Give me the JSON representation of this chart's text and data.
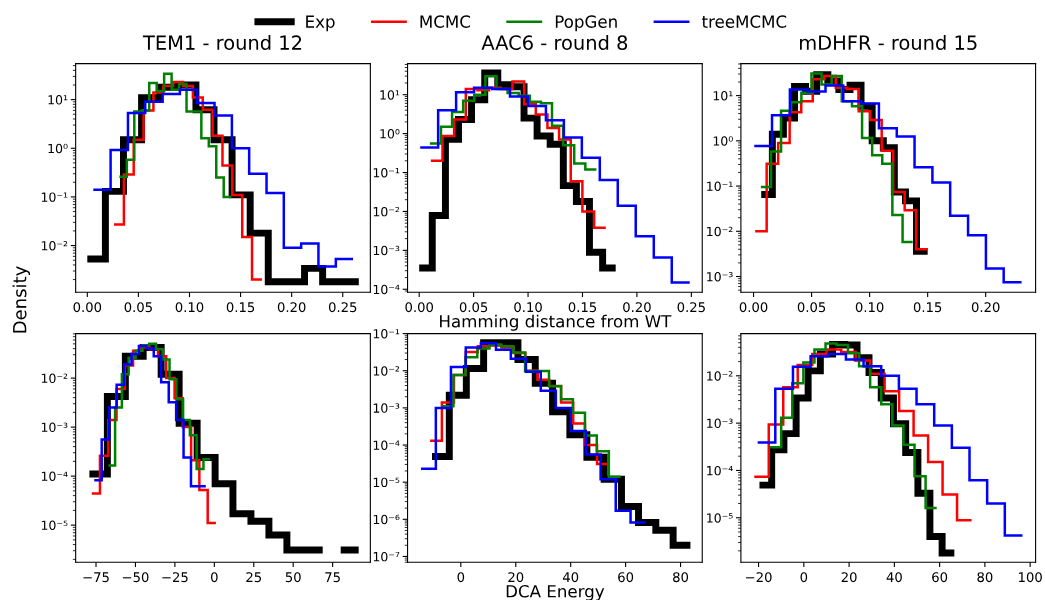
{
  "chart_data": [
    {
      "type": "step",
      "title": "TEM1 - round 12",
      "ylabel": "Density",
      "legend": "top",
      "log": true,
      "xlim": [
        -0.0114,
        0.277
      ],
      "ylim": [
        0.0011,
        55
      ],
      "xticks": [
        {
          "value": 0,
          "label": "0.00"
        },
        {
          "value": 0.05,
          "label": "0.05"
        },
        {
          "value": 0.1,
          "label": "0.10"
        },
        {
          "value": 0.15,
          "label": "0.15"
        },
        {
          "value": 0.2,
          "label": "0.20"
        },
        {
          "value": 0.25,
          "label": "0.25"
        }
      ],
      "yticks": [
        {
          "value": 0.01,
          "label": "10⁻²"
        },
        {
          "value": 0.1,
          "label": "10⁻¹"
        },
        {
          "value": 1,
          "label": "10⁰"
        },
        {
          "value": 10,
          "label": "10¹"
        }
      ],
      "series": [
        {
          "name": "Exp",
          "color": "#000000",
          "x": [
            0,
            0.0177,
            0.0354,
            0.0531,
            0.0709,
            0.0886,
            0.1063,
            0.124,
            0.1417,
            0.1594,
            0.1771,
            0.1948,
            0.2126,
            0.2303,
            0.248,
            0.2657
          ],
          "values": [
            0.0053,
            0.13,
            1.5,
            11,
            18,
            20,
            6.2,
            1.5,
            0.11,
            0.018,
            0.0018,
            0.0018,
            0.0034,
            0.0018,
            0.0018,
            0.0018
          ]
        },
        {
          "name": "MCMC",
          "color": "#ff0000",
          "x": [
            0.0261,
            0.0358,
            0.0454,
            0.0551,
            0.0647,
            0.0744,
            0.084,
            0.0937,
            0.1033,
            0.113,
            0.1226,
            0.1323,
            0.1419,
            0.1516,
            0.1612,
            0.1709
          ],
          "values": [
            0.027,
            0.29,
            1.5,
            6,
            14,
            19,
            23,
            19,
            11,
            6.2,
            1.8,
            0.44,
            0.11,
            0.015,
            0.002,
            0.002
          ]
        },
        {
          "name": "PopGen",
          "color": "#008000",
          "x": [
            0.0314,
            0.0387,
            0.046,
            0.0533,
            0.0606,
            0.0679,
            0.0752,
            0.0825,
            0.0898,
            0.0971,
            0.1044,
            0.1116,
            0.1189,
            0.1262,
            0.1335,
            0.1408
          ],
          "values": [
            0.26,
            0.58,
            5.7,
            6,
            22,
            15,
            34,
            16,
            21,
            5.7,
            5.7,
            1.6,
            1.1,
            0.25,
            0.1,
            0.1
          ]
        },
        {
          "name": "treeMCMC",
          "color": "#0000ff",
          "x": [
            0.0059,
            0.0228,
            0.0398,
            0.0567,
            0.0737,
            0.0906,
            0.1076,
            0.1245,
            0.1415,
            0.1584,
            0.1754,
            0.1923,
            0.2093,
            0.2262,
            0.2432,
            0.2601
          ],
          "values": [
            0.14,
            0.92,
            5.3,
            9,
            13,
            16,
            8.5,
            4.7,
            1.0,
            0.3,
            0.12,
            0.009,
            0.011,
            0.0037,
            0.0053,
            0.0053
          ]
        }
      ]
    },
    {
      "type": "step",
      "title": "AAC6 - round 8",
      "xlabel": "Hamming distance from WT",
      "log": true,
      "xlim": [
        -0.0107,
        0.26
      ],
      "ylim": [
        8.4e-05,
        63
      ],
      "xticks": [
        {
          "value": 0,
          "label": "0.00"
        },
        {
          "value": 0.05,
          "label": "0.05"
        },
        {
          "value": 0.1,
          "label": "0.10"
        },
        {
          "value": 0.15,
          "label": "0.15"
        },
        {
          "value": 0.2,
          "label": "0.20"
        },
        {
          "value": 0.25,
          "label": "0.25"
        }
      ],
      "yticks": [
        {
          "value": 0.0001,
          "label": "10⁻⁴"
        },
        {
          "value": 0.001,
          "label": "10⁻³"
        },
        {
          "value": 0.01,
          "label": "10⁻²"
        },
        {
          "value": 0.1,
          "label": "10⁻¹"
        },
        {
          "value": 1,
          "label": "10⁰"
        },
        {
          "value": 10,
          "label": "10¹"
        }
      ],
      "series": [
        {
          "color": "#000000",
          "x": [
            0,
            0.012,
            0.0241,
            0.0361,
            0.0481,
            0.0602,
            0.0722,
            0.0842,
            0.0963,
            0.1083,
            0.1203,
            0.1324,
            0.1444,
            0.1564,
            0.1685,
            0.1805
          ],
          "values": [
            0.00035,
            0.0079,
            0.71,
            2.3,
            7.4,
            36,
            18,
            16,
            2.5,
            0.87,
            0.53,
            0.046,
            0.018,
            0.00089,
            0.00035,
            0.00035
          ]
        },
        {
          "color": "#ff0000",
          "x": [
            0.0107,
            0.0214,
            0.0321,
            0.0428,
            0.0535,
            0.0642,
            0.0749,
            0.0857,
            0.0964,
            0.1071,
            0.1178,
            0.1285,
            0.1392,
            0.1499,
            0.1607,
            0.1714
          ],
          "values": [
            0.2,
            0.87,
            2.3,
            14,
            13,
            15,
            14,
            22,
            5.7,
            3.1,
            1.4,
            0.71,
            0.06,
            0.01,
            0.0038,
            0.0038
          ]
        },
        {
          "color": "#008000",
          "x": [
            0.0098,
            0.02,
            0.0302,
            0.0404,
            0.0506,
            0.0608,
            0.071,
            0.0812,
            0.0914,
            0.1016,
            0.1118,
            0.122,
            0.1322,
            0.1424,
            0.1526,
            0.1628
          ],
          "values": [
            0.56,
            1.5,
            3.6,
            7,
            10,
            30,
            14,
            11,
            9.4,
            6.6,
            6,
            1.6,
            0.5,
            0.17,
            0.12,
            0.12
          ]
        },
        {
          "color": "#0000ff",
          "x": [
            0.0009,
            0.0174,
            0.0339,
            0.0504,
            0.0669,
            0.0834,
            0.0999,
            0.1164,
            0.1329,
            0.1494,
            0.1659,
            0.1824,
            0.1989,
            0.2155,
            0.232,
            0.2485
          ],
          "values": [
            0.44,
            4,
            11.5,
            15,
            14,
            9,
            5.1,
            2.2,
            0.8,
            0.24,
            0.064,
            0.014,
            0.0023,
            0.00065,
            0.00015,
            0.00015
          ]
        }
      ]
    },
    {
      "type": "step",
      "title": "mDHFR - round 15",
      "log": true,
      "xlim": [
        -0.0109,
        0.243
      ],
      "ylim": [
        0.00045,
        51
      ],
      "xticks": [
        {
          "value": 0,
          "label": "0.00"
        },
        {
          "value": 0.05,
          "label": "0.05"
        },
        {
          "value": 0.1,
          "label": "0.10"
        },
        {
          "value": 0.15,
          "label": "0.15"
        },
        {
          "value": 0.2,
          "label": "0.20"
        }
      ],
      "yticks": [
        {
          "value": 0.001,
          "label": "10⁻³"
        },
        {
          "value": 0.01,
          "label": "10⁻²"
        },
        {
          "value": 0.1,
          "label": "10⁻¹"
        },
        {
          "value": 1,
          "label": "10⁰"
        },
        {
          "value": 10,
          "label": "10¹"
        }
      ],
      "series": [
        {
          "color": "#000000",
          "x": [
            0.0066,
            0.0162,
            0.0257,
            0.0353,
            0.0448,
            0.0544,
            0.064,
            0.0735,
            0.0831,
            0.0926,
            0.1022,
            0.1118,
            0.1213,
            0.1309,
            0.1404,
            0.15
          ],
          "values": [
            0.065,
            1.4,
            3.2,
            16,
            12.5,
            29,
            21,
            13.6,
            17,
            5.8,
            1.0,
            0.7,
            0.074,
            0.047,
            0.0036,
            0.0036
          ]
        },
        {
          "color": "#ff0000",
          "x": [
            0.0014,
            0.0113,
            0.0212,
            0.0311,
            0.0411,
            0.051,
            0.0609,
            0.0708,
            0.0807,
            0.0906,
            0.1005,
            0.1104,
            0.1203,
            0.1302,
            0.1401,
            0.15
          ],
          "values": [
            0.01,
            0.31,
            0.89,
            4.3,
            7.5,
            23,
            27,
            15,
            14,
            4.5,
            2.9,
            0.6,
            0.074,
            0.029,
            0.004,
            0.004
          ]
        },
        {
          "color": "#008000",
          "x": [
            0.0063,
            0.015,
            0.0237,
            0.0324,
            0.0412,
            0.0499,
            0.0586,
            0.0673,
            0.076,
            0.0848,
            0.0935,
            0.1022,
            0.1109,
            0.1196,
            0.1284,
            0.1371
          ],
          "values": [
            0.095,
            0.58,
            4.6,
            7.1,
            11.5,
            31,
            17.5,
            27,
            7.5,
            5.8,
            1.15,
            0.48,
            0.31,
            0.023,
            0.0058,
            0.0058
          ]
        },
        {
          "color": "#0000ff",
          "x": [
            0.0006,
            0.0159,
            0.0313,
            0.0466,
            0.062,
            0.0773,
            0.0927,
            0.108,
            0.1234,
            0.1387,
            0.1541,
            0.1694,
            0.1848,
            0.2002,
            0.2155,
            0.2309
          ],
          "values": [
            0.77,
            3.7,
            13.6,
            12.3,
            16.7,
            7.5,
            6.7,
            1.9,
            1.25,
            0.26,
            0.12,
            0.022,
            0.0082,
            0.0015,
            0.00075,
            0.00075
          ]
        }
      ]
    },
    {
      "type": "step",
      "log": true,
      "xlim": [
        -87.9,
        98.9
      ],
      "ylim": [
        1.75e-06,
        0.081
      ],
      "xticks": [
        {
          "value": -75,
          "label": "−75"
        },
        {
          "value": -50,
          "label": "−50"
        },
        {
          "value": -25,
          "label": "−25"
        },
        0,
        25,
        50,
        75
      ],
      "yticks": [
        {
          "value": 1e-05,
          "label": "10⁻⁵"
        },
        {
          "value": 0.0001,
          "label": "10⁻⁴"
        },
        {
          "value": 0.001,
          "label": "10⁻³"
        },
        {
          "value": 0.01,
          "label": "10⁻²"
        }
      ],
      "series": [
        {
          "color": "#000000",
          "x": [
            -79.2,
            -67.8,
            -56.4,
            -45.1,
            -33.7,
            -22.3,
            -10.9,
            0.5,
            11.8,
            23.2,
            34.6,
            46.0,
            57.4,
            68.7,
            80.1,
            91.5
          ],
          "values": [
            0.00011,
            0.0042,
            0.028,
            0.042,
            0.012,
            0.0012,
            0.00024,
            7e-05,
            1.7e-05,
            1.2e-05,
            6.3e-06,
            3.1e-06,
            3.1e-06,
            null,
            3.1e-06,
            3.1e-06
          ]
        },
        {
          "color": "#ff0000",
          "x": [
            -77.7,
            -72.5,
            -67.2,
            -62.0,
            -56.7,
            -51.5,
            -46.2,
            -41.0,
            -35.7,
            -30.5,
            -25.2,
            -20.0,
            -14.7,
            -9.5,
            -4.2,
            1.0
          ],
          "values": [
            4.4e-05,
            0.00026,
            0.0014,
            0.006,
            0.018,
            0.036,
            0.042,
            0.039,
            0.028,
            0.01,
            0.0039,
            0.001,
            0.00021,
            5.2e-05,
            1.1e-05,
            1.1e-05
          ]
        },
        {
          "color": "#008000",
          "x": [
            -67.2,
            -62.9,
            -58.6,
            -54.3,
            -49.9,
            -45.6,
            -41.3,
            -37.0,
            -32.7,
            -28.4,
            -24.1,
            -19.8,
            -15.5,
            -11.2,
            -6.9,
            -2.6
          ],
          "values": [
            0.000165,
            0.0025,
            0.012,
            0.026,
            0.036,
            0.047,
            0.05,
            0.039,
            0.024,
            0.0095,
            0.0037,
            0.0014,
            0.00068,
            0.00014,
            0.00022,
            0.00022
          ]
        },
        {
          "color": "#0000ff",
          "x": [
            -76.1,
            -71.4,
            -66.7,
            -61.9,
            -57.2,
            -52.5,
            -47.8,
            -43.1,
            -38.4,
            -33.7,
            -28.9,
            -24.2,
            -19.5,
            -14.8,
            -10.1,
            -5.4
          ],
          "values": [
            8.2e-05,
            0.00056,
            0.0025,
            0.0073,
            0.019,
            0.031,
            0.045,
            0.04,
            0.028,
            0.0082,
            0.0032,
            0.0014,
            0.00024,
            6.2e-05,
            6.2e-05,
            6.2e-05
          ]
        }
      ]
    },
    {
      "type": "step",
      "xlabel": "DCA Energy",
      "log": true,
      "xlim": [
        -19.4,
        87.9
      ],
      "ylim": [
        7e-08,
        0.1
      ],
      "xticks": [
        0,
        20,
        40,
        60,
        80
      ],
      "yticks": [
        {
          "value": 1e-07,
          "label": "10⁻⁷"
        },
        {
          "value": 1e-06,
          "label": "10⁻⁶"
        },
        {
          "value": 1e-05,
          "label": "10⁻⁵"
        },
        {
          "value": 0.0001,
          "label": "10⁻⁴"
        },
        {
          "value": 0.001,
          "label": "10⁻³"
        },
        {
          "value": 0.01,
          "label": "10⁻²"
        },
        {
          "value": 0.1,
          "label": "10⁻¹"
        }
      ],
      "series": [
        {
          "color": "#000000",
          "x": [
            -10.5,
            -4.2,
            2.0,
            8.3,
            14.6,
            20.8,
            27.1,
            33.4,
            39.7,
            45.9,
            52.2,
            58.5,
            64.7,
            71.0,
            77.3,
            83.6
          ],
          "values": [
            4.9e-05,
            0.0022,
            0.0115,
            0.057,
            0.057,
            0.02,
            0.0046,
            0.00078,
            0.00019,
            4.7e-05,
            1.2e-05,
            2.2e-06,
            8.2e-07,
            5.1e-07,
            2e-07,
            2e-07
          ]
        },
        {
          "color": "#ff0000",
          "x": [
            -11.2,
            -6.9,
            -2.5,
            1.8,
            6.2,
            10.5,
            14.8,
            19.2,
            23.5,
            27.9,
            32.2,
            36.5,
            40.9,
            45.2,
            49.6,
            53.9
          ],
          "values": [
            0.00013,
            0.0014,
            0.0077,
            0.032,
            0.046,
            0.048,
            0.042,
            0.03,
            0.01,
            0.0057,
            0.0039,
            0.0014,
            0.00038,
            0.0001,
            3.1e-05,
            3.1e-05
          ]
        },
        {
          "color": "#008000",
          "x": [
            -7.0,
            -2.7,
            1.7,
            6.0,
            10.4,
            14.7,
            19.1,
            23.4,
            27.8,
            32.1,
            36.5,
            40.8,
            45.2,
            49.5,
            53.9,
            58.2
          ],
          "values": [
            0.0011,
            0.0077,
            0.023,
            0.04,
            0.051,
            0.046,
            0.031,
            0.0098,
            0.0098,
            0.0038,
            0.0017,
            0.00074,
            0.00018,
            6.8e-05,
            1.4e-05,
            1.4e-05
          ]
        },
        {
          "color": "#0000ff",
          "x": [
            -14.5,
            -9.1,
            -3.6,
            1.8,
            7.3,
            12.8,
            18.2,
            23.7,
            29.1,
            34.6,
            40.0,
            45.5,
            50.9,
            56.4,
            61.8,
            67.3
          ],
          "values": [
            2.3e-05,
            0.001,
            0.0127,
            0.042,
            0.055,
            0.037,
            0.021,
            0.0094,
            0.0029,
            0.001,
            0.00024,
            5.6e-05,
            1.2e-05,
            1.7e-06,
            8.2e-07,
            8.2e-07
          ]
        }
      ]
    },
    {
      "type": "step",
      "log": true,
      "xlim": [
        -27.8,
        102.4
      ],
      "ylim": [
        1.15e-06,
        0.078
      ],
      "xticks": [
        {
          "value": -20,
          "label": "−20"
        },
        0,
        20,
        40,
        60,
        80,
        100
      ],
      "yticks": [
        {
          "value": 1e-05,
          "label": "10⁻⁵"
        },
        {
          "value": 0.0001,
          "label": "10⁻⁴"
        },
        {
          "value": 0.001,
          "label": "10⁻³"
        },
        {
          "value": 0.01,
          "label": "10⁻²"
        }
      ],
      "series": [
        {
          "color": "#000000",
          "x": [
            -19.6,
            -14.2,
            -8.8,
            -3.4,
            1.9,
            7.3,
            12.7,
            18.1,
            23.5,
            28.8,
            34.2,
            39.6,
            45.0,
            50.4,
            55.7,
            61.1,
            66.5
          ],
          "values": [
            4.9e-05,
            0.000275,
            0.0006,
            0.0034,
            0.0127,
            0.029,
            0.046,
            0.045,
            0.024,
            0.0118,
            0.0034,
            0.00097,
            0.00024,
            3.3e-05,
            4e-06,
            1.8e-06,
            1.8e-06
          ]
        },
        {
          "color": "#ff0000",
          "x": [
            -21.9,
            -15.5,
            -9.1,
            -2.7,
            3.7,
            10.1,
            16.5,
            22.9,
            29.3,
            35.7,
            42.1,
            48.5,
            54.9,
            61.3,
            67.7,
            74.1
          ],
          "values": [
            7.4e-05,
            0.00094,
            0.0057,
            0.017,
            0.029,
            0.036,
            0.032,
            0.021,
            0.011,
            0.0047,
            0.0018,
            0.00055,
            0.00015,
            3.1e-05,
            8.9e-06,
            8.9e-06
          ]
        },
        {
          "color": "#008000",
          "x": [
            -14.9,
            -10.0,
            -5.1,
            -0.2,
            4.7,
            9.6,
            14.5,
            19.5,
            24.4,
            29.3,
            34.2,
            39.1,
            44.0,
            48.9,
            53.8,
            58.7
          ],
          "values": [
            0.00031,
            0.0013,
            0.007,
            0.019,
            0.036,
            0.048,
            0.045,
            0.03,
            0.016,
            0.0057,
            0.0025,
            0.00089,
            0.00035,
            7.5e-05,
            1.6e-05,
            1.6e-05
          ]
        },
        {
          "color": "#0000ff",
          "x": [
            -20.4,
            -12.6,
            -4.8,
            3.0,
            10.8,
            18.6,
            26.4,
            34.2,
            42.0,
            49.8,
            57.6,
            65.4,
            73.2,
            81.0,
            88.8,
            96.6
          ],
          "values": [
            0.00039,
            0.0053,
            0.0155,
            0.026,
            0.029,
            0.022,
            0.016,
            0.01,
            0.0053,
            0.0025,
            0.00089,
            0.0003,
            6.2e-05,
            2e-05,
            4.2e-06,
            4.2e-06
          ]
        }
      ]
    }
  ]
}
